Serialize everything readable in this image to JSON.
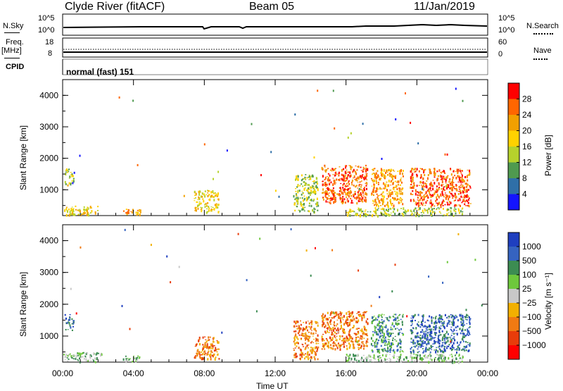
{
  "header": {
    "station": "Clyde River (fitACF)",
    "beam": "Beam 05",
    "date": "11/Jan/2019"
  },
  "top_panels": {
    "nsky_label": "N.Sky",
    "nsky_ticks": [
      "10^5",
      "10^0"
    ],
    "nsearch_label": "N.Search",
    "nsearch_ticks": [
      "10^5",
      "10^0"
    ],
    "freq_label": "Freq.",
    "freq_unit": "[MHz]",
    "freq_ticks": [
      "18",
      "8"
    ],
    "nave_label": "Nave",
    "nave_ticks": [
      "60",
      "0"
    ],
    "cpid_label": "CPID",
    "cpid_value": "normal (fast) 151"
  },
  "chart_data": [
    {
      "type": "heatmap",
      "quantity": "power",
      "xlabel": "",
      "ylabel": "Slant Range [km]",
      "xlim": [
        "00:00",
        "24:00"
      ],
      "ylim": [
        180,
        4500
      ],
      "yticks": [
        "4000",
        "3000",
        "2000",
        "1000"
      ],
      "colorbar_label": "Power [dB]",
      "colorbar_ticks": [
        "28",
        "24",
        "20",
        "16",
        "12",
        "8",
        "4"
      ],
      "colorbar_colors": [
        "#ff0000",
        "#ff6600",
        "#f2a000",
        "#ffd200",
        "#b6d22c",
        "#4f9a4f",
        "#2f6fa8",
        "#1414ff"
      ],
      "echo_regions": [
        {
          "t_start": 0.0,
          "t_end": 2.0,
          "r_start": 200,
          "r_end": 500,
          "level": 16
        },
        {
          "t_start": 0.1,
          "t_end": 0.6,
          "r_start": 1200,
          "r_end": 1700,
          "level": 14
        },
        {
          "t_start": 3.4,
          "t_end": 4.4,
          "r_start": 200,
          "r_end": 400,
          "level": 22
        },
        {
          "t_start": 7.4,
          "t_end": 8.8,
          "r_start": 300,
          "r_end": 1000,
          "level": 18
        },
        {
          "t_start": 13.0,
          "t_end": 14.4,
          "r_start": 300,
          "r_end": 1500,
          "level": 15
        },
        {
          "t_start": 14.6,
          "t_end": 17.2,
          "r_start": 600,
          "r_end": 1800,
          "level": 24
        },
        {
          "t_start": 17.4,
          "t_end": 19.2,
          "r_start": 500,
          "r_end": 1700,
          "level": 22
        },
        {
          "t_start": 19.6,
          "t_end": 23.0,
          "r_start": 500,
          "r_end": 1700,
          "level": 26
        },
        {
          "t_start": 16.0,
          "t_end": 22.6,
          "r_start": 200,
          "r_end": 450,
          "level": 14
        }
      ]
    },
    {
      "type": "heatmap",
      "quantity": "velocity",
      "xlabel": "Time UT",
      "ylabel": "Slant Range [km]",
      "xlim": [
        "00:00",
        "24:00"
      ],
      "ylim": [
        180,
        4500
      ],
      "xticks": [
        "00:00",
        "04:00",
        "08:00",
        "12:00",
        "16:00",
        "20:00",
        "00:00"
      ],
      "yticks": [
        "4000",
        "3000",
        "2000",
        "1000"
      ],
      "colorbar_label": "Velocity [m s⁻¹]",
      "colorbar_ticks": [
        "1000",
        "500",
        "100",
        "25",
        "−25",
        "−100",
        "−500",
        "−1000"
      ],
      "colorbar_colors": [
        "#1f3fbf",
        "#3563c0",
        "#3c8c52",
        "#6ec83c",
        "#c8c8c8",
        "#f2b000",
        "#f07a12",
        "#e83c0a",
        "#ff0000"
      ],
      "echo_regions": [
        {
          "t_start": 0.0,
          "t_end": 2.2,
          "r_start": 200,
          "r_end": 500,
          "level": 60
        },
        {
          "t_start": 0.1,
          "t_end": 0.6,
          "r_start": 1200,
          "r_end": 1700,
          "level": 700
        },
        {
          "t_start": 3.4,
          "t_end": 4.4,
          "r_start": 200,
          "r_end": 400,
          "level": 40
        },
        {
          "t_start": 7.4,
          "t_end": 8.8,
          "r_start": 300,
          "r_end": 1000,
          "level": -150
        },
        {
          "t_start": 13.0,
          "t_end": 14.4,
          "r_start": 300,
          "r_end": 1500,
          "level": -300
        },
        {
          "t_start": 14.6,
          "t_end": 17.2,
          "r_start": 600,
          "r_end": 1800,
          "level": -400
        },
        {
          "t_start": 17.4,
          "t_end": 19.2,
          "r_start": 500,
          "r_end": 1700,
          "level": 400
        },
        {
          "t_start": 19.6,
          "t_end": 23.0,
          "r_start": 500,
          "r_end": 1700,
          "level": 900
        },
        {
          "t_start": 16.0,
          "t_end": 22.6,
          "r_start": 200,
          "r_end": 450,
          "level": 50
        }
      ]
    }
  ]
}
